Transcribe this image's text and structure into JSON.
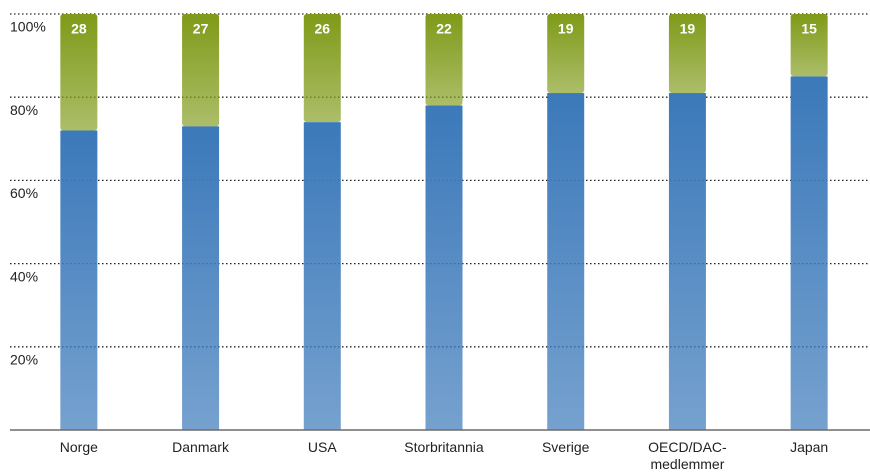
{
  "chart_data": {
    "type": "stacked_bar",
    "categories": [
      "Norge",
      "Danmark",
      "USA",
      "Storbritannia",
      "Sverige",
      "OECD/DAC-medlemmer",
      "Japan"
    ],
    "series": [
      {
        "color": "#3b79ba",
        "values": [
          72,
          73,
          74,
          78,
          81,
          81,
          85
        ]
      },
      {
        "color": "#7f9a18",
        "values": [
          28,
          27,
          26,
          22,
          19,
          19,
          15
        ]
      }
    ],
    "ylim": [
      0,
      100
    ],
    "yticks": [
      {
        "value": 20,
        "label": "20%"
      },
      {
        "value": 40,
        "label": "40%"
      },
      {
        "value": 60,
        "label": "60%"
      },
      {
        "value": 80,
        "label": "80%"
      },
      {
        "value": 100,
        "label": "100%"
      }
    ],
    "grid": true
  }
}
